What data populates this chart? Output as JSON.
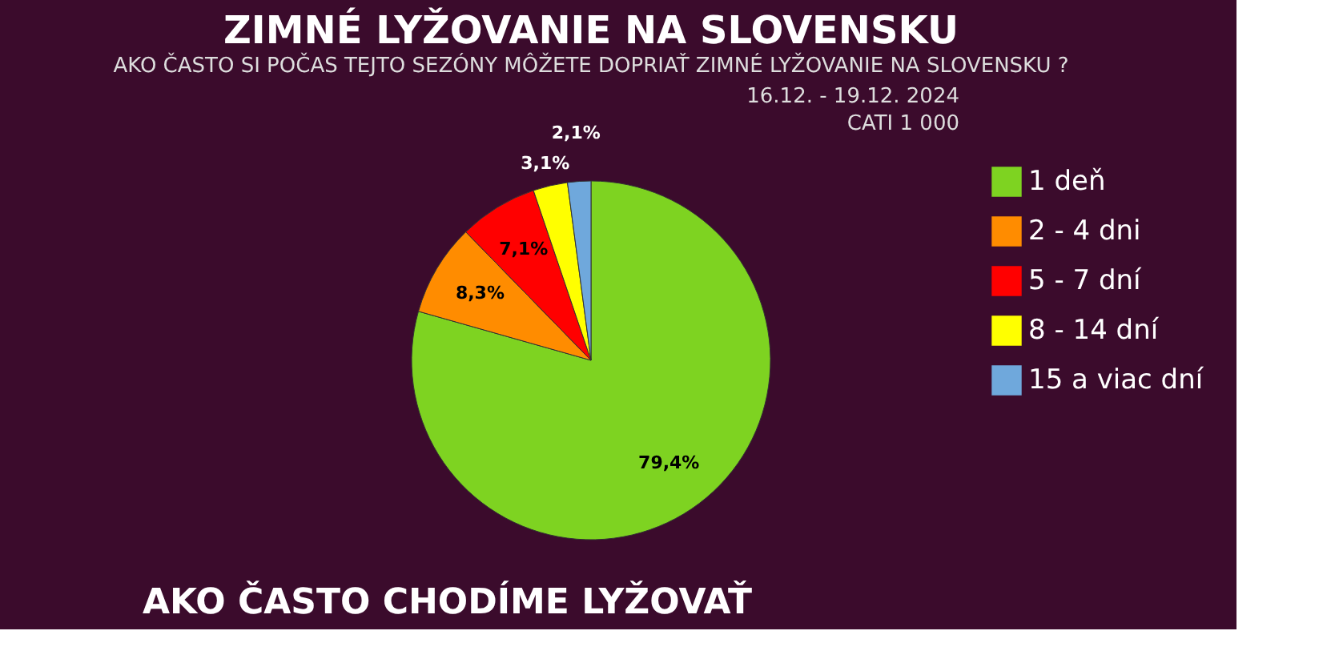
{
  "chart_data": {
    "type": "pie",
    "title": "ZIMNÉ LYŽOVANIE NA SLOVENSKU",
    "subtitle": "AKO ČASTO SI POČAS TEJTO SEZÓNY MÔŽETE DOPRIAŤ ZIMNÉ LYŽOVANIE NA SLOVENSKU ?",
    "categories": [
      "1 deň",
      "2 - 4 dni",
      "5 - 7 dní",
      "8 - 14 dní",
      "15 a viac dní"
    ],
    "values": [
      79.4,
      8.3,
      7.1,
      3.1,
      2.1
    ],
    "colors": [
      "#7ed321",
      "#ff8c00",
      "#ff0000",
      "#ffff00",
      "#6fa8dc"
    ],
    "value_labels": [
      "79,4%",
      "8,3%",
      "7,1%",
      "3,1%",
      "2,1%"
    ],
    "legend": "right",
    "annotations": [
      "16.12. - 19.12. 2024",
      "CATI 1 000",
      "AKO ČASTO CHODÍME LYŽOVAŤ"
    ]
  }
}
